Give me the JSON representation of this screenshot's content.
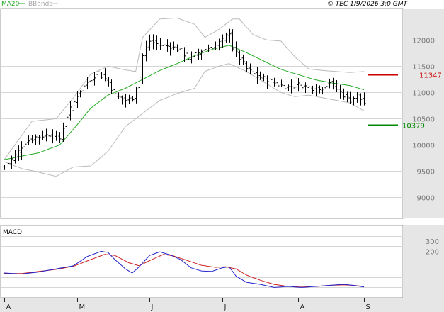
{
  "header": {
    "legend_ma": "MA20",
    "legend_bb": "BBands",
    "copyright": "© TEC 1/9/2026 3:0 GMT",
    "macd_label": "MACD"
  },
  "colors": {
    "price": "#000000",
    "ma": "#22aa22",
    "bbands": "#bbbbbb",
    "macd": "#2222cc",
    "signal": "#cc2222",
    "resistance": "#cc0000",
    "support": "#008800"
  },
  "chart_data": [
    {
      "type": "ohlc",
      "y_ticks": [
        9000,
        9500,
        10000,
        10500,
        11000,
        11500,
        12000
      ],
      "ylim": [
        8600,
        12600
      ],
      "x_ticks": [
        {
          "label": "A",
          "bar": 0
        },
        {
          "label": "M",
          "bar": 21
        },
        {
          "label": "J",
          "bar": 42
        },
        {
          "label": "J",
          "bar": 63
        },
        {
          "label": "A",
          "bar": 85
        },
        {
          "label": "S",
          "bar": 104
        }
      ],
      "n_bars": 105,
      "anchors_close": [
        [
          0,
          9580
        ],
        [
          3,
          9800
        ],
        [
          6,
          10050
        ],
        [
          9,
          10150
        ],
        [
          13,
          10200
        ],
        [
          16,
          10120
        ],
        [
          18,
          10550
        ],
        [
          21,
          10950
        ],
        [
          24,
          11200
        ],
        [
          27,
          11380
        ],
        [
          30,
          11200
        ],
        [
          32,
          10950
        ],
        [
          35,
          10850
        ],
        [
          37,
          10900
        ],
        [
          39,
          11300
        ],
        [
          40,
          11700
        ],
        [
          42,
          11980
        ],
        [
          45,
          11900
        ],
        [
          48,
          11880
        ],
        [
          51,
          11800
        ],
        [
          53,
          11650
        ],
        [
          55,
          11720
        ],
        [
          57,
          11800
        ],
        [
          59,
          11850
        ],
        [
          61,
          11900
        ],
        [
          63,
          12000
        ],
        [
          65,
          12150
        ],
        [
          66,
          11850
        ],
        [
          68,
          11650
        ],
        [
          70,
          11450
        ],
        [
          73,
          11300
        ],
        [
          76,
          11250
        ],
        [
          79,
          11150
        ],
        [
          82,
          11100
        ],
        [
          85,
          11150
        ],
        [
          88,
          11100
        ],
        [
          91,
          11050
        ],
        [
          94,
          11200
        ],
        [
          97,
          11000
        ],
        [
          100,
          10850
        ],
        [
          102,
          10950
        ],
        [
          104,
          10800
        ]
      ],
      "ma20_anchors": [
        [
          0,
          9720
        ],
        [
          10,
          9850
        ],
        [
          16,
          10000
        ],
        [
          20,
          10300
        ],
        [
          25,
          10700
        ],
        [
          30,
          10950
        ],
        [
          35,
          11080
        ],
        [
          40,
          11250
        ],
        [
          45,
          11420
        ],
        [
          50,
          11550
        ],
        [
          55,
          11700
        ],
        [
          60,
          11820
        ],
        [
          65,
          11900
        ],
        [
          70,
          11760
        ],
        [
          75,
          11600
        ],
        [
          80,
          11440
        ],
        [
          85,
          11340
        ],
        [
          90,
          11240
        ],
        [
          95,
          11180
        ],
        [
          100,
          11130
        ],
        [
          104,
          11050
        ]
      ],
      "bb_upper_anchors": [
        [
          0,
          9720
        ],
        [
          8,
          10450
        ],
        [
          15,
          10500
        ],
        [
          20,
          10900
        ],
        [
          25,
          11350
        ],
        [
          30,
          11500
        ],
        [
          35,
          11430
        ],
        [
          38,
          11400
        ],
        [
          40,
          12050
        ],
        [
          45,
          12400
        ],
        [
          50,
          12420
        ],
        [
          55,
          12300
        ],
        [
          58,
          12050
        ],
        [
          62,
          12200
        ],
        [
          66,
          12400
        ],
        [
          68,
          12400
        ],
        [
          72,
          12100
        ],
        [
          76,
          12000
        ],
        [
          80,
          11980
        ],
        [
          84,
          11680
        ],
        [
          88,
          11450
        ],
        [
          92,
          11420
        ],
        [
          96,
          11400
        ],
        [
          100,
          11380
        ],
        [
          104,
          11400
        ]
      ],
      "bb_lower_anchors": [
        [
          0,
          9680
        ],
        [
          5,
          9550
        ],
        [
          10,
          9480
        ],
        [
          15,
          9400
        ],
        [
          20,
          9580
        ],
        [
          25,
          9600
        ],
        [
          30,
          9880
        ],
        [
          35,
          10350
        ],
        [
          40,
          10600
        ],
        [
          45,
          10850
        ],
        [
          50,
          10980
        ],
        [
          55,
          11080
        ],
        [
          58,
          11400
        ],
        [
          62,
          11500
        ],
        [
          65,
          11550
        ],
        [
          70,
          11400
        ],
        [
          75,
          11200
        ],
        [
          80,
          11000
        ],
        [
          84,
          10920
        ],
        [
          88,
          10950
        ],
        [
          92,
          10900
        ],
        [
          96,
          10850
        ],
        [
          100,
          10800
        ],
        [
          104,
          10650
        ]
      ],
      "resistance": 11347,
      "support": 10379,
      "resistance_label": "11347",
      "support_label": "10379"
    },
    {
      "type": "line",
      "name": "MACD",
      "y_ticks": [
        200,
        300
      ],
      "ylim": [
        -250,
        450
      ],
      "macd_anchors": [
        [
          0,
          -10
        ],
        [
          5,
          -20
        ],
        [
          10,
          0
        ],
        [
          15,
          30
        ],
        [
          20,
          60
        ],
        [
          24,
          150
        ],
        [
          28,
          200
        ],
        [
          30,
          190
        ],
        [
          32,
          120
        ],
        [
          35,
          30
        ],
        [
          37,
          -10
        ],
        [
          39,
          50
        ],
        [
          42,
          160
        ],
        [
          45,
          195
        ],
        [
          48,
          165
        ],
        [
          51,
          120
        ],
        [
          54,
          40
        ],
        [
          57,
          10
        ],
        [
          60,
          5
        ],
        [
          63,
          40
        ],
        [
          65,
          50
        ],
        [
          67,
          -40
        ],
        [
          70,
          -100
        ],
        [
          74,
          -120
        ],
        [
          78,
          -150
        ],
        [
          82,
          -140
        ],
        [
          86,
          -150
        ],
        [
          90,
          -140
        ],
        [
          94,
          -130
        ],
        [
          98,
          -120
        ],
        [
          101,
          -130
        ],
        [
          104,
          -145
        ]
      ],
      "signal_anchors": [
        [
          0,
          -15
        ],
        [
          5,
          -15
        ],
        [
          10,
          5
        ],
        [
          15,
          25
        ],
        [
          20,
          55
        ],
        [
          25,
          120
        ],
        [
          29,
          170
        ],
        [
          32,
          160
        ],
        [
          36,
          90
        ],
        [
          39,
          60
        ],
        [
          42,
          110
        ],
        [
          46,
          170
        ],
        [
          49,
          155
        ],
        [
          53,
          110
        ],
        [
          57,
          65
        ],
        [
          61,
          45
        ],
        [
          64,
          50
        ],
        [
          67,
          30
        ],
        [
          70,
          -30
        ],
        [
          74,
          -80
        ],
        [
          78,
          -120
        ],
        [
          82,
          -140
        ],
        [
          86,
          -140
        ],
        [
          90,
          -140
        ],
        [
          94,
          -130
        ],
        [
          98,
          -125
        ],
        [
          101,
          -130
        ],
        [
          104,
          -140
        ]
      ]
    }
  ]
}
